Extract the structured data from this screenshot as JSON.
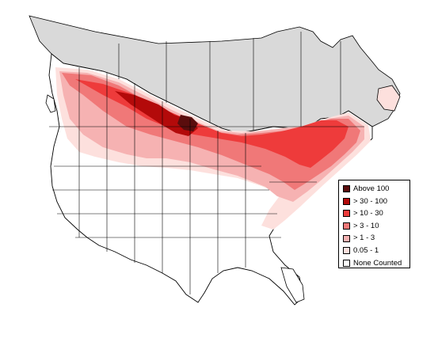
{
  "map": {
    "colors": {
      "water": "#ffffff",
      "land": "#ffffff",
      "not_surveyed": "#d9d9d9",
      "boundary_line": "#000000"
    },
    "legend": {
      "items": [
        {
          "label": "Above 100",
          "color": "#5a0d0d"
        },
        {
          "label": "> 30 - 100",
          "color": "#b30a0a"
        },
        {
          "label": "> 10 - 30",
          "color": "#ee3b3b"
        },
        {
          "label": "> 3 - 10",
          "color": "#f07878"
        },
        {
          "label": "> 1 - 3",
          "color": "#f6b2b2"
        },
        {
          "label": "0.05 - 1",
          "color": "#fde0dd"
        },
        {
          "label": "None Counted",
          "color": "#ffffff"
        }
      ]
    }
  }
}
